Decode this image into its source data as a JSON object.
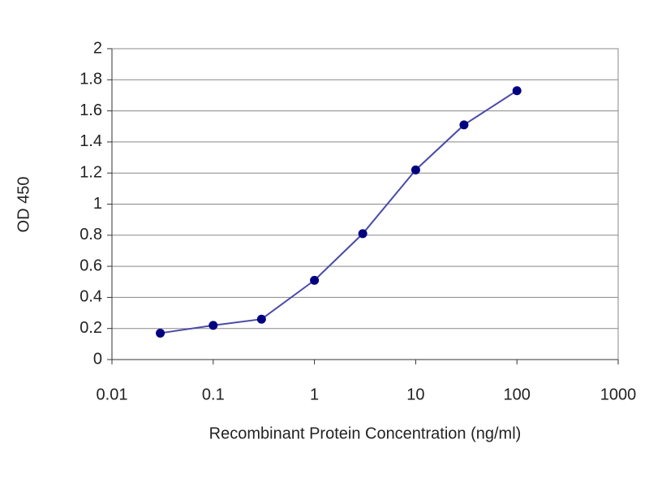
{
  "chart_data": {
    "type": "line",
    "x_label": "Recombinant Protein Concentration (ng/ml)",
    "y_label": "OD 450",
    "xscale": "log",
    "xlim": [
      0.01,
      1000
    ],
    "xticks": [
      0.01,
      0.1,
      1,
      10,
      100,
      1000
    ],
    "ylim": [
      0,
      2
    ],
    "yticks": [
      0,
      0.2,
      0.4,
      0.6,
      0.8,
      1,
      1.2,
      1.4,
      1.6,
      1.8,
      2
    ],
    "grid": true,
    "series": [
      {
        "color": "#000080",
        "line_color": "#4a4aa8",
        "x": [
          0.03,
          0.1,
          0.3,
          1,
          3,
          10,
          30,
          100
        ],
        "values": [
          0.17,
          0.22,
          0.26,
          0.51,
          0.81,
          1.22,
          1.51,
          1.73
        ]
      }
    ]
  }
}
